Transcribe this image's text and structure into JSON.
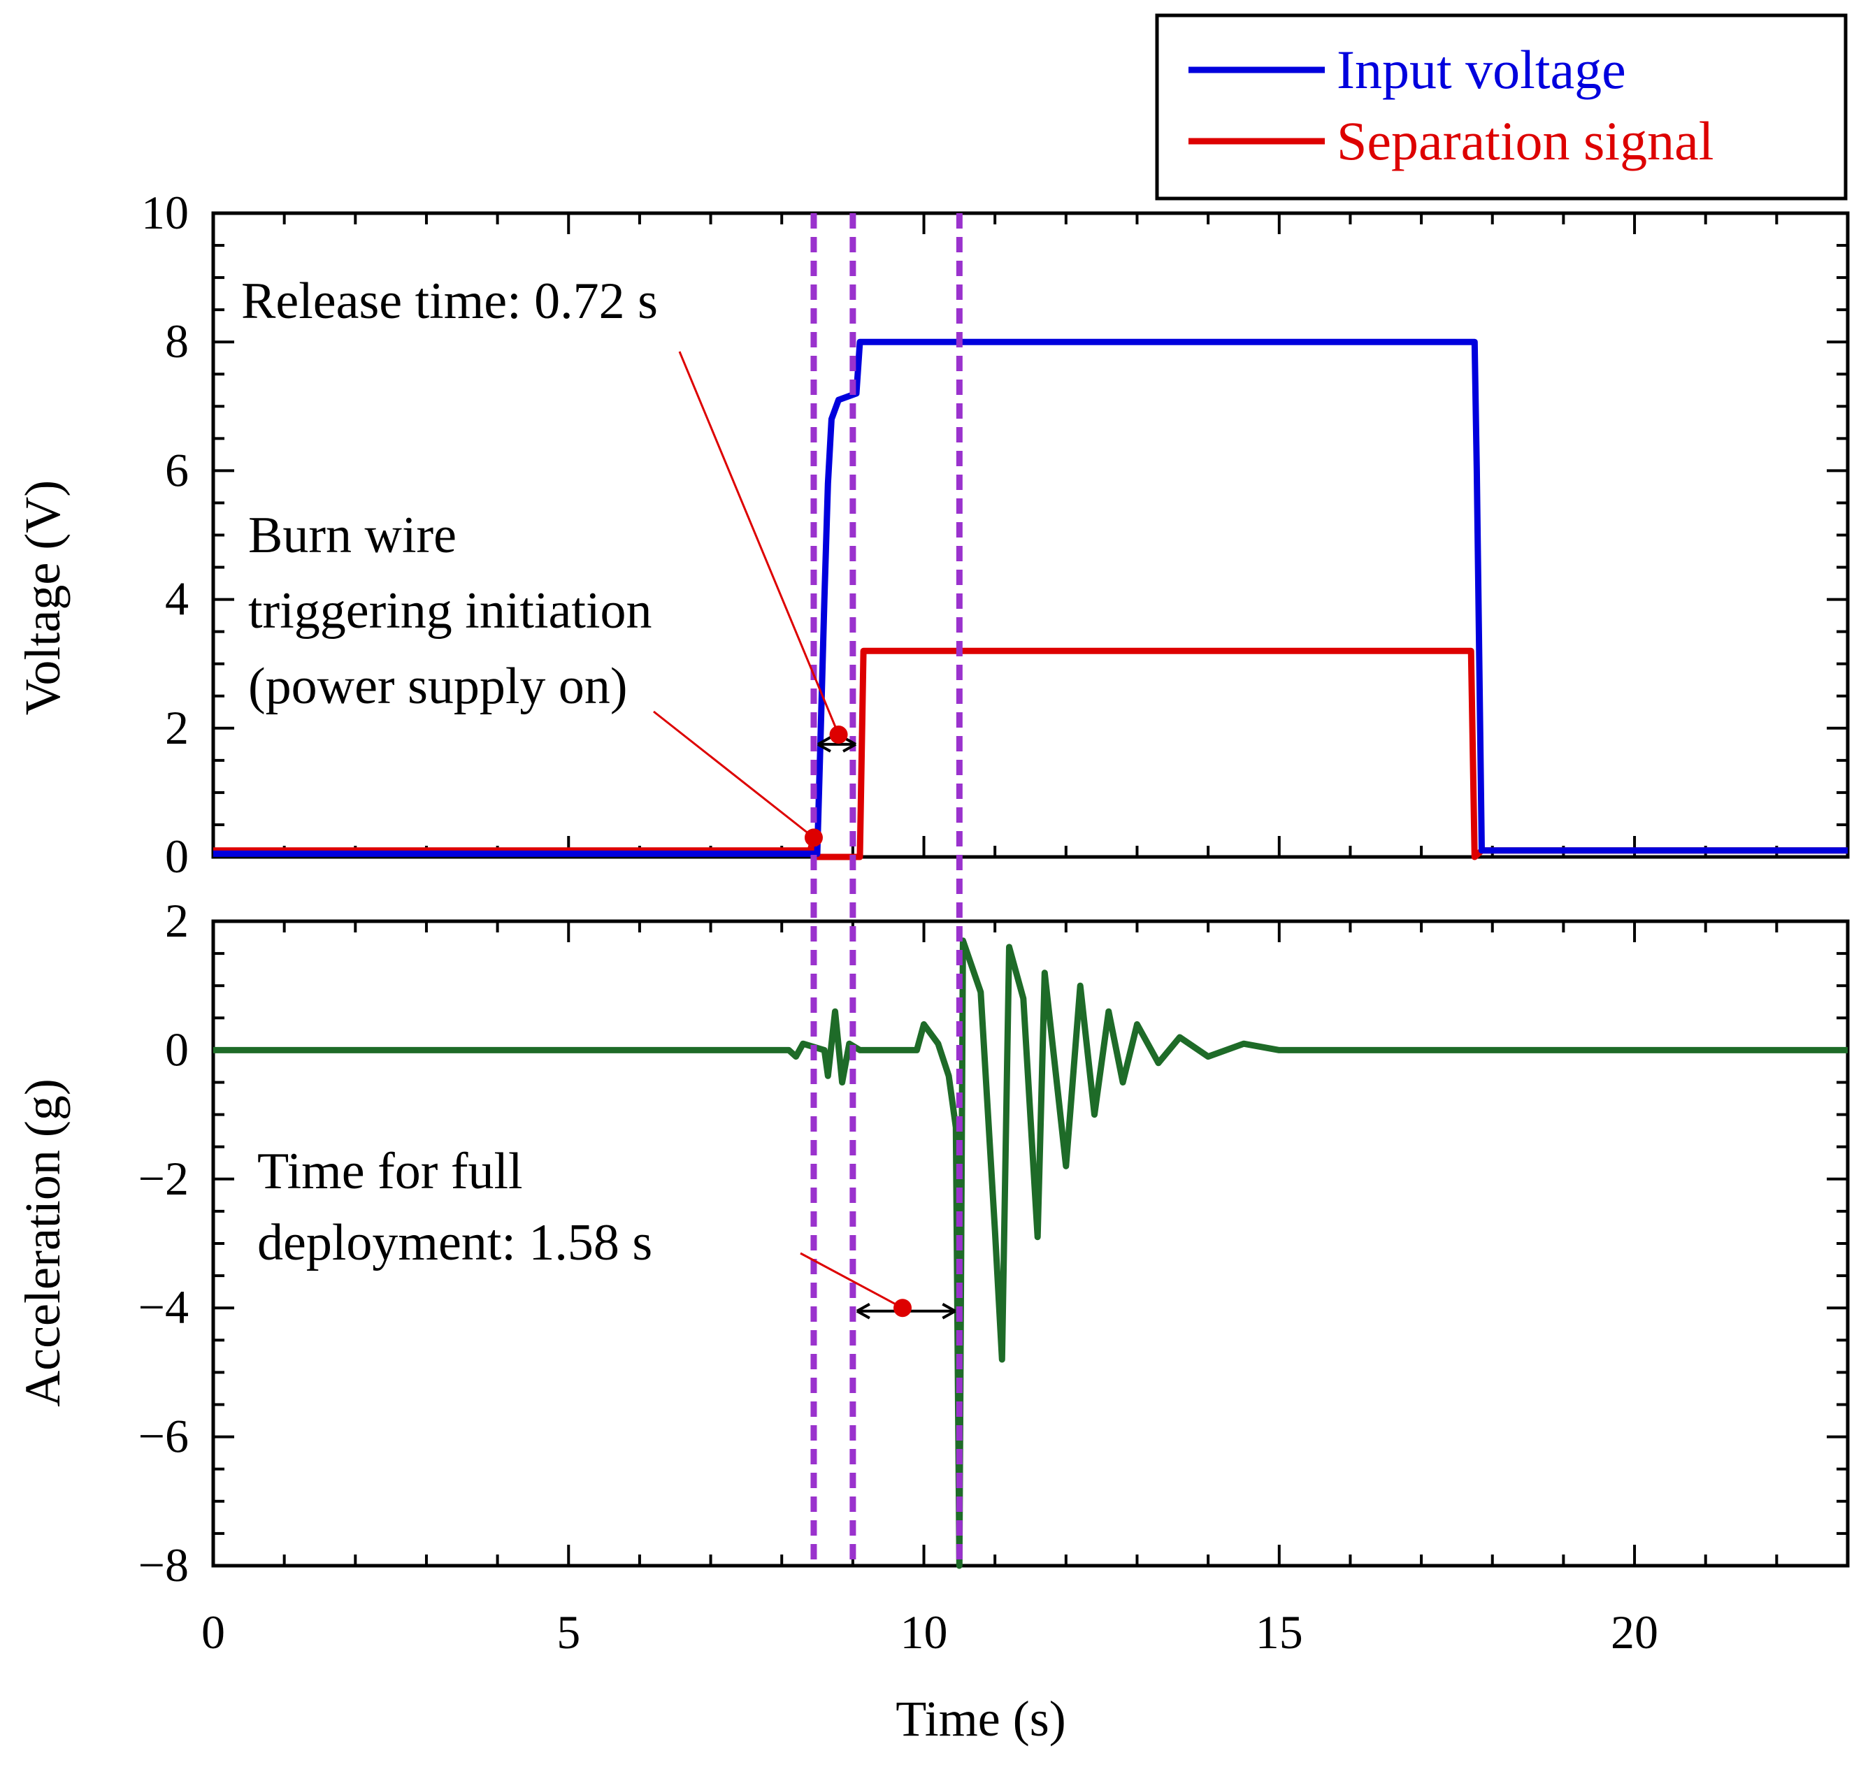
{
  "chart_data": [
    {
      "type": "line",
      "panel": "top",
      "ylabel": "Voltage (V)",
      "ylim": [
        0,
        10
      ],
      "yticks": [
        "0",
        "2",
        "4",
        "6",
        "8",
        "10"
      ],
      "xlim": [
        0,
        23
      ],
      "legend": {
        "placement": "top-right, above plot",
        "entries": [
          "Input voltage",
          "Separation signal"
        ]
      },
      "series": [
        {
          "name": "Input voltage",
          "color": "#0000dd",
          "points": [
            [
              0,
              0.05
            ],
            [
              8.5,
              0.05
            ],
            [
              8.55,
              2.0
            ],
            [
              8.6,
              4.0
            ],
            [
              8.65,
              5.8
            ],
            [
              8.7,
              6.8
            ],
            [
              8.8,
              7.1
            ],
            [
              9.05,
              7.2
            ],
            [
              9.1,
              8.0
            ],
            [
              17.75,
              8.0
            ],
            [
              17.78,
              6.0
            ],
            [
              17.85,
              0.1
            ],
            [
              23,
              0.1
            ]
          ]
        },
        {
          "name": "Separation signal",
          "color": "#dd0000",
          "points": [
            [
              0,
              0.1
            ],
            [
              8.4,
              0.1
            ],
            [
              8.45,
              0.3
            ],
            [
              8.5,
              0.0
            ],
            [
              9.1,
              0.0
            ],
            [
              9.15,
              3.2
            ],
            [
              17.7,
              3.2
            ],
            [
              17.75,
              0.0
            ],
            [
              17.85,
              0.1
            ],
            [
              23,
              0.1
            ]
          ]
        }
      ],
      "annotations": [
        {
          "text_lines": [
            "Release time: 0.72 s"
          ],
          "marker_x": 8.8,
          "marker_y": 1.9
        },
        {
          "text_lines": [
            "Burn wire",
            "triggering initiation",
            "(power supply on)"
          ],
          "marker_x": 8.45,
          "marker_y": 0.3
        }
      ]
    },
    {
      "type": "line",
      "panel": "bottom",
      "xlabel": "Time (s)",
      "ylabel": "Acceleration (g)",
      "ylim": [
        -8,
        2
      ],
      "yticks": [
        "−8",
        "−6",
        "−4",
        "−2",
        "0",
        "2"
      ],
      "xlim": [
        0,
        23
      ],
      "xticks": [
        "0",
        "5",
        "10",
        "15",
        "20"
      ],
      "series": [
        {
          "name": "",
          "color": "#1e6b28",
          "points": [
            [
              0,
              0
            ],
            [
              8.1,
              0
            ],
            [
              8.2,
              -0.1
            ],
            [
              8.3,
              0.1
            ],
            [
              8.6,
              0
            ],
            [
              8.65,
              -0.4
            ],
            [
              8.75,
              0.6
            ],
            [
              8.85,
              -0.5
            ],
            [
              8.95,
              0.1
            ],
            [
              9.1,
              0
            ],
            [
              9.9,
              0
            ],
            [
              10.0,
              0.4
            ],
            [
              10.2,
              0.1
            ],
            [
              10.35,
              -0.4
            ],
            [
              10.45,
              -1.2
            ],
            [
              10.5,
              -8
            ],
            [
              10.55,
              1.7
            ],
            [
              10.8,
              0.9
            ],
            [
              11.0,
              -2.8
            ],
            [
              11.1,
              -4.8
            ],
            [
              11.2,
              1.6
            ],
            [
              11.4,
              0.8
            ],
            [
              11.6,
              -2.9
            ],
            [
              11.7,
              1.2
            ],
            [
              11.9,
              -0.8
            ],
            [
              12.0,
              -1.8
            ],
            [
              12.2,
              1.0
            ],
            [
              12.4,
              -1.0
            ],
            [
              12.6,
              0.6
            ],
            [
              12.8,
              -0.5
            ],
            [
              13.0,
              0.4
            ],
            [
              13.3,
              -0.2
            ],
            [
              13.6,
              0.2
            ],
            [
              14.0,
              -0.1
            ],
            [
              14.5,
              0.1
            ],
            [
              15.0,
              0
            ],
            [
              23,
              0
            ]
          ]
        }
      ],
      "annotations": [
        {
          "text_lines": [
            "Time for full",
            "deployment: 1.58 s"
          ],
          "marker_x": 9.7,
          "marker_y": -4.0
        }
      ]
    }
  ],
  "guide_lines_x": [
    8.45,
    9.0,
    10.5
  ],
  "colors": {
    "guide": "#9a32cd",
    "marker": "#dd0000",
    "axes": "#000000"
  }
}
